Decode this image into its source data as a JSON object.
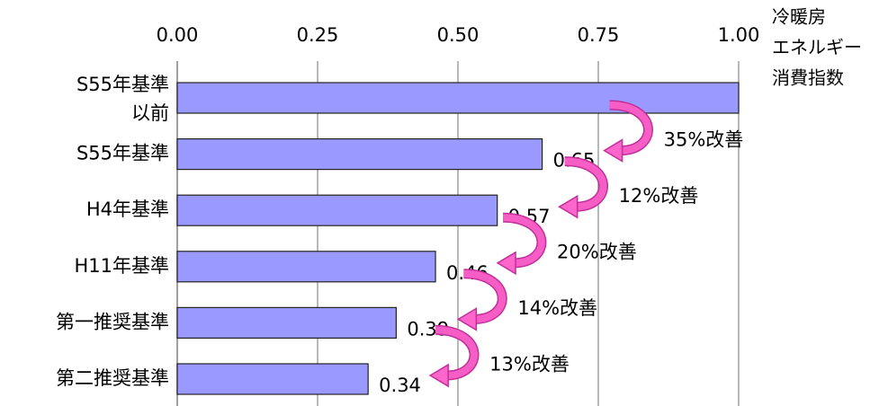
{
  "chart_data": {
    "type": "hbar",
    "categories": [
      [
        "S55年基準",
        "以前"
      ],
      [
        "S55年基準"
      ],
      [
        "H4年基準"
      ],
      [
        "H11年基準"
      ],
      [
        "第一推奨基準"
      ],
      [
        "第二推奨基準"
      ]
    ],
    "category_colors": [
      "#000000",
      "#000000",
      "#000000",
      "#000000",
      "#ff0000",
      "#ff0000"
    ],
    "values": [
      1.0,
      0.65,
      0.57,
      0.46,
      0.39,
      0.34
    ],
    "value_labels": [
      null,
      "0.65",
      "0.57",
      "0.46",
      "0.39",
      "0.34"
    ],
    "color": "#9999ff",
    "xlim": [
      0,
      1
    ],
    "xticks": [
      {
        "value": 0,
        "label": "0.00"
      },
      {
        "value": 0.25,
        "label": "0.25"
      },
      {
        "value": 0.5,
        "label": "0.50"
      },
      {
        "value": 0.75,
        "label": "0.75"
      },
      {
        "value": 1,
        "label": "1.00"
      }
    ],
    "x_label": [
      "冷暖房",
      "エネルギー",
      "消費指数"
    ],
    "grid": true,
    "annotations": [
      "35%改善",
      "12%改善",
      "20%改善",
      "14%改善",
      "13%改善"
    ],
    "annotation_color": "#ff66cc"
  }
}
